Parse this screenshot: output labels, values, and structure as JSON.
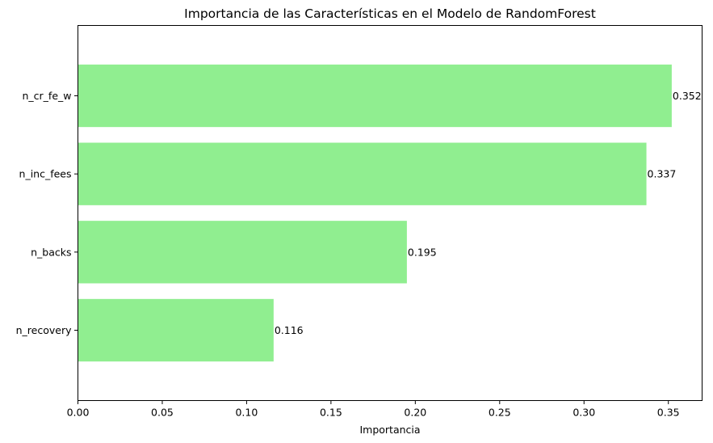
{
  "chart_data": {
    "type": "bar",
    "orientation": "horizontal",
    "title": "Importancia de las Características en el Modelo de RandomForest",
    "xlabel": "Importancia",
    "ylabel": "",
    "categories": [
      "n_recovery",
      "n_backs",
      "n_inc_fees",
      "n_cr_fe_w"
    ],
    "values": [
      0.116,
      0.195,
      0.337,
      0.352
    ],
    "data_labels": [
      "0.116",
      "0.195",
      "0.337",
      "0.352"
    ],
    "xlim": [
      0,
      0.37
    ],
    "xticks": [
      0.0,
      0.05,
      0.1,
      0.15,
      0.2,
      0.25,
      0.3,
      0.35
    ],
    "xtick_labels": [
      "0.00",
      "0.05",
      "0.10",
      "0.15",
      "0.20",
      "0.25",
      "0.30",
      "0.35"
    ],
    "bar_color": "#90EE90",
    "grid": false,
    "legend": "none"
  }
}
